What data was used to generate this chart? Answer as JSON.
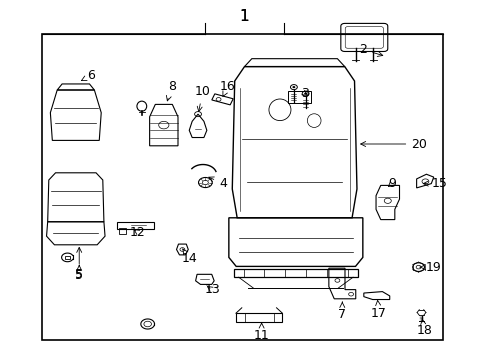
{
  "title": "1",
  "bg": "#ffffff",
  "border": [
    0.085,
    0.055,
    0.905,
    0.905
  ],
  "fig_width": 4.89,
  "fig_height": 3.6,
  "dpi": 100,
  "labels": {
    "1": [
      0.5,
      0.955,
      "center",
      "center",
      11
    ],
    "2": [
      0.825,
      0.835,
      "left",
      "center",
      9
    ],
    "3": [
      0.617,
      0.74,
      "left",
      "center",
      9
    ],
    "4": [
      0.445,
      0.49,
      "left",
      "center",
      9
    ],
    "5": [
      0.162,
      0.255,
      "center",
      "top",
      9
    ],
    "6": [
      0.175,
      0.79,
      "left",
      "center",
      9
    ],
    "7": [
      0.7,
      0.145,
      "center",
      "top",
      9
    ],
    "8": [
      0.34,
      0.76,
      "left",
      "center",
      9
    ],
    "9": [
      0.79,
      0.49,
      "left",
      "center",
      9
    ],
    "10": [
      0.395,
      0.745,
      "left",
      "center",
      9
    ],
    "11": [
      0.535,
      0.085,
      "center",
      "top",
      9
    ],
    "12": [
      0.263,
      0.355,
      "left",
      "center",
      9
    ],
    "13": [
      0.415,
      0.195,
      "left",
      "center",
      9
    ],
    "14": [
      0.368,
      0.3,
      "left",
      "top",
      9
    ],
    "15": [
      0.88,
      0.49,
      "left",
      "center",
      9
    ],
    "16": [
      0.447,
      0.76,
      "left",
      "center",
      9
    ],
    "17": [
      0.772,
      0.148,
      "center",
      "top",
      9
    ],
    "18": [
      0.865,
      0.1,
      "center",
      "top",
      9
    ],
    "19": [
      0.868,
      0.258,
      "left",
      "center",
      9
    ],
    "20": [
      0.838,
      0.6,
      "left",
      "center",
      9
    ]
  }
}
